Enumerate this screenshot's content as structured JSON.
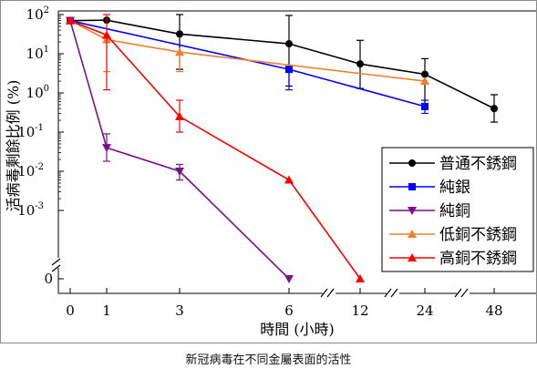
{
  "caption": "新冠病毒在不同金屬表面的活性",
  "chart_data": {
    "type": "line",
    "title": "",
    "xlabel": "時間 (小時)",
    "ylabel": "活病毒剩餘比例 (%)",
    "x_scale": "broken-linear",
    "y_scale": "log",
    "x_ticks": [
      0,
      1,
      3,
      6,
      12,
      24,
      48
    ],
    "y_tick_labels": [
      {
        "value": 100,
        "mantissa": "10",
        "exponent": "2"
      },
      {
        "value": 10,
        "mantissa": "10",
        "exponent": "1"
      },
      {
        "value": 1,
        "mantissa": "10",
        "exponent": "0"
      },
      {
        "value": 0.1,
        "mantissa": "10",
        "exponent": "-1"
      },
      {
        "value": 0.01,
        "mantissa": "10",
        "exponent": "-2"
      },
      {
        "value": 0.001,
        "mantissa": "10",
        "exponent": "-3"
      },
      {
        "value": 0,
        "mantissa": "0",
        "exponent": ""
      }
    ],
    "x_axis_breaks": [
      [
        6,
        12
      ],
      [
        12,
        24
      ],
      [
        24,
        48
      ]
    ],
    "y_axis_break": [
      0,
      0.001
    ],
    "legend_position": "lower-right",
    "series": [
      {
        "name": "普通不銹鋼",
        "color": "#000000",
        "marker": "circle",
        "x": [
          0,
          1,
          3,
          6,
          12,
          24,
          48
        ],
        "y": [
          70,
          72,
          32,
          18,
          5.5,
          3.0,
          0.4
        ],
        "err_low": [
          null,
          null,
          4.0,
          1.5,
          1.3,
          0.5,
          0.18
        ],
        "err_high": [
          null,
          null,
          100,
          95,
          22,
          7.5,
          0.9
        ]
      },
      {
        "name": "純銀",
        "color": "#0000ff",
        "marker": "square",
        "x": [
          0,
          6,
          24
        ],
        "y": [
          70,
          4.0,
          0.45
        ],
        "err_low": [
          null,
          1.2,
          0.3
        ],
        "err_high": [
          null,
          null,
          0.65
        ]
      },
      {
        "name": "純銅",
        "color": "#7b0f8c",
        "marker": "triangle-down",
        "x": [
          0,
          1,
          3,
          6
        ],
        "y": [
          70,
          0.04,
          0.01,
          0
        ],
        "err_low": [
          null,
          0.018,
          0.006,
          null
        ],
        "err_high": [
          null,
          0.09,
          0.015,
          null
        ]
      },
      {
        "name": "低銅不銹鋼",
        "color": "#f08030",
        "marker": "triangle-up",
        "x": [
          0,
          1,
          3,
          24
        ],
        "y": [
          70,
          23,
          11,
          2.0
        ],
        "err_low": [
          null,
          3.5,
          3.5,
          null
        ],
        "err_high": [
          null,
          null,
          null,
          null
        ]
      },
      {
        "name": "高銅不銹鋼",
        "color": "#ff0000",
        "marker": "triangle-up",
        "x": [
          0,
          1,
          3,
          6,
          12
        ],
        "y": [
          70,
          30,
          0.25,
          0.006,
          0
        ],
        "err_low": [
          null,
          1.2,
          0.1,
          null,
          null
        ],
        "err_high": [
          null,
          100,
          0.65,
          null,
          null
        ]
      }
    ]
  }
}
